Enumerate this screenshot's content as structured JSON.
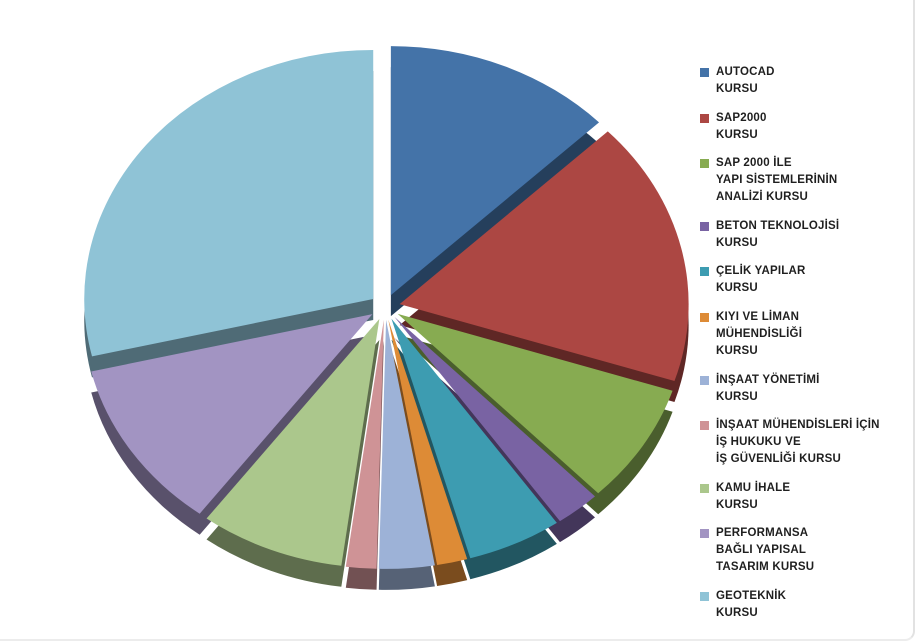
{
  "chart_data": {
    "type": "pie",
    "style": "3d-exploded-pie",
    "title": "",
    "legend_position": "right",
    "direction": "clockwise",
    "start_angle_deg": 0,
    "unit": "percent (estimated from slice angles)",
    "series": [
      {
        "label": "AUTOCAD\nKURSU",
        "value": 12.8,
        "color": "#4473A8"
      },
      {
        "label": "SAP2000\nKURSU",
        "value": 17.2,
        "color": "#AC4743"
      },
      {
        "label": "SAP 2000 İLE\nYAPI SİSTEMLERİNİN\nANALİZİ KURSU",
        "value": 7.8,
        "color": "#87AB51"
      },
      {
        "label": "BETON TEKNOLOJİSİ\nKURSU",
        "value": 2.5,
        "color": "#7963A3"
      },
      {
        "label": "ÇELİK YAPILAR\nKURSU",
        "value": 5.3,
        "color": "#3D9CB1"
      },
      {
        "label": "KIYI VE LİMAN\nMÜHENDİSLİĞİ\nKURSU",
        "value": 1.7,
        "color": "#DD8B36"
      },
      {
        "label": "İNŞAAT YÖNETİMİ\nKURSU",
        "value": 3.1,
        "color": "#9DB2D7"
      },
      {
        "label": "İNŞAAT MÜHENDİSLERİ İÇİN\nİŞ HUKUKU VE\nİŞ GÜVENLİĞİ KURSU",
        "value": 1.7,
        "color": "#CF9396"
      },
      {
        "label": "KAMU İHALE\nKURSU",
        "value": 8.1,
        "color": "#ABC78C"
      },
      {
        "label": "PERFORMANSA\nBAĞLI YAPISAL\nTASARIM KURSU",
        "value": 11.1,
        "color": "#A294C2"
      },
      {
        "label": "GEOTEKNİK\nKURSU",
        "value": 28.7,
        "color": "#8FC3D6"
      }
    ]
  }
}
